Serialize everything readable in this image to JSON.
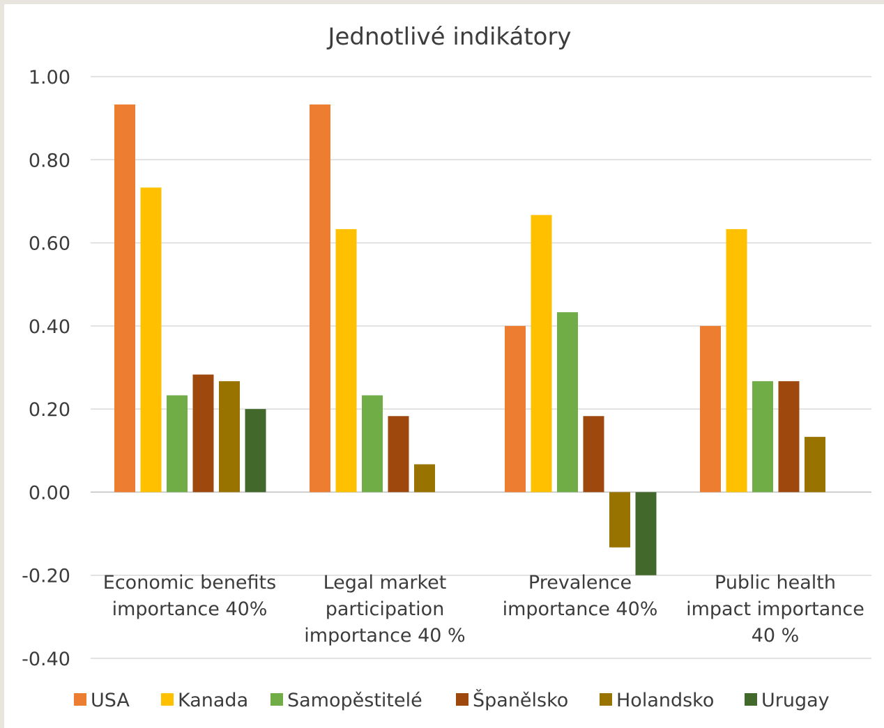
{
  "chart_data": {
    "type": "bar",
    "title": "Jednotlivé indikátory",
    "xlabel": "",
    "ylabel": "",
    "ylim": [
      -0.4,
      1.0
    ],
    "yticks": [
      -0.4,
      -0.2,
      0.0,
      0.2,
      0.4,
      0.6,
      0.8,
      1.0
    ],
    "ytick_labels": [
      "-0.40",
      "-0.20",
      "0.00",
      "0.20",
      "0.40",
      "0.60",
      "0.80",
      "1.00"
    ],
    "grid": true,
    "legend_position": "bottom",
    "categories": [
      [
        "Economic benefits",
        "importance 40%"
      ],
      [
        "Legal market",
        "participation",
        "importance 40 %"
      ],
      [
        "Prevalence",
        "importance 40%"
      ],
      [
        "Public health",
        "impact importance",
        "40 %"
      ]
    ],
    "series": [
      {
        "name": "USA",
        "color": "#ed7d31",
        "values": [
          0.933,
          0.933,
          0.4,
          0.4
        ]
      },
      {
        "name": "Kanada",
        "color": "#ffc000",
        "values": [
          0.733,
          0.633,
          0.667,
          0.633
        ]
      },
      {
        "name": "Samopěstitelé",
        "color": "#70ad47",
        "values": [
          0.233,
          0.233,
          0.433,
          0.267
        ]
      },
      {
        "name": "Španělsko",
        "color": "#9e480e",
        "values": [
          0.283,
          0.183,
          0.183,
          0.267
        ]
      },
      {
        "name": "Holandsko",
        "color": "#997300",
        "values": [
          0.267,
          0.067,
          -0.133,
          0.133
        ]
      },
      {
        "name": "Urugay",
        "color": "#43682b",
        "values": [
          0.2,
          0.0,
          -0.2,
          0.0
        ]
      }
    ]
  }
}
